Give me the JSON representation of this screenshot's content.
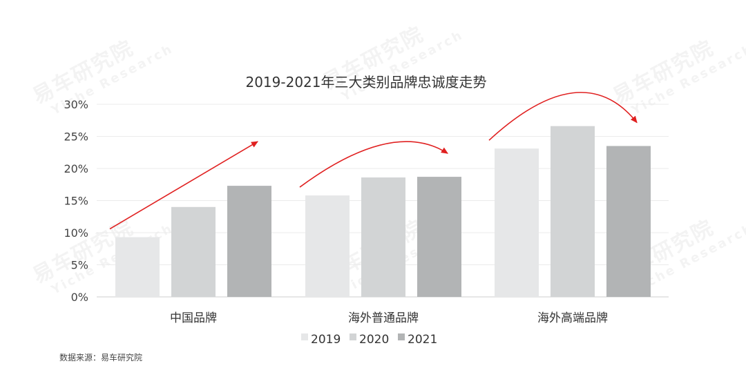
{
  "watermark": {
    "cn": "易车研究院",
    "en": "Yiche Research"
  },
  "source": "数据来源：易车研究院",
  "colors": {
    "s2019": "#e6e7e8",
    "s2020": "#d2d4d5",
    "s2021": "#b2b4b5",
    "arrow": "#e02020",
    "grid": "#ebebeb",
    "text": "#333333"
  },
  "chart_data": {
    "type": "bar",
    "title": "2019-2021年三大类别品牌忠诚度走势",
    "categories": [
      "中国品牌",
      "海外普通品牌",
      "海外高端品牌"
    ],
    "series": [
      {
        "name": "2019",
        "values": [
          9.3,
          15.8,
          23.1
        ]
      },
      {
        "name": "2020",
        "values": [
          14.0,
          18.6,
          26.6
        ]
      },
      {
        "name": "2021",
        "values": [
          17.3,
          18.7,
          23.5
        ]
      }
    ],
    "ylim": [
      0,
      30
    ],
    "yticks": [
      "0%",
      "5%",
      "10%",
      "15%",
      "20%",
      "25%",
      "30%"
    ],
    "grid": true,
    "legend": "bottom-center"
  }
}
